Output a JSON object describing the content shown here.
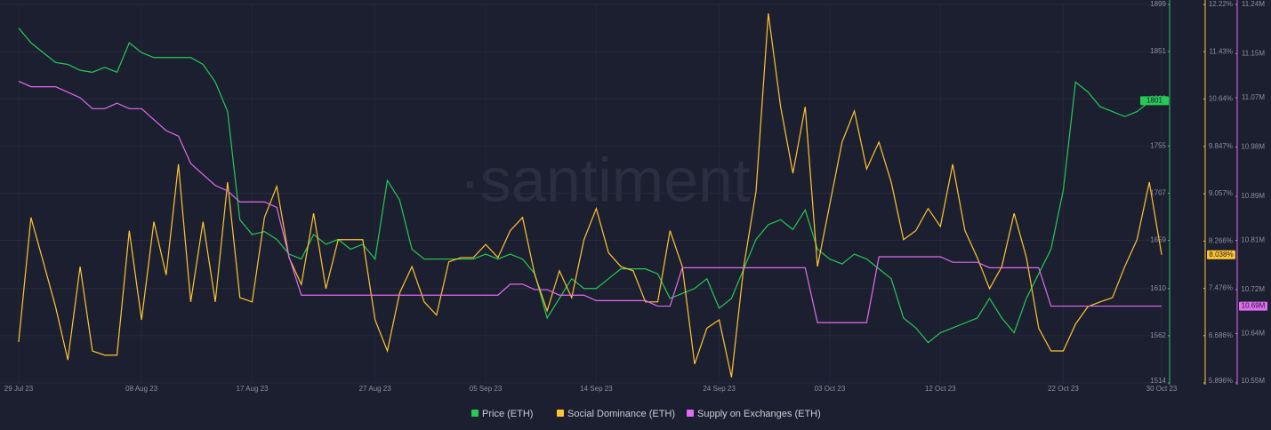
{
  "chart_data": {
    "type": "line",
    "watermark": "·santiment",
    "categories": [
      "29 Jul 23",
      null,
      null,
      null,
      null,
      null,
      null,
      null,
      null,
      null,
      "08 Aug 23",
      null,
      null,
      null,
      null,
      null,
      null,
      null,
      null,
      "17 Aug 23",
      null,
      null,
      null,
      null,
      null,
      null,
      null,
      null,
      null,
      "27 Aug 23",
      null,
      null,
      null,
      null,
      null,
      null,
      null,
      null,
      "05 Sep 23",
      null,
      null,
      null,
      null,
      null,
      null,
      null,
      null,
      "14 Sep 23",
      null,
      null,
      null,
      null,
      null,
      null,
      null,
      null,
      null,
      "24 Sep 23",
      null,
      null,
      null,
      null,
      null,
      null,
      null,
      null,
      "03 Oct 23",
      null,
      null,
      null,
      null,
      null,
      null,
      null,
      null,
      "12 Oct 23",
      null,
      null,
      null,
      null,
      null,
      null,
      null,
      null,
      null,
      "22 Oct 23",
      null,
      null,
      null,
      null,
      null,
      null,
      null,
      "30 Oct 23"
    ],
    "ylim": [
      1514,
      1899
    ],
    "yticks": [
      1514,
      1562,
      1610,
      1659,
      1707,
      1755,
      1803,
      1851,
      1899
    ],
    "y2lim": [
      5.896,
      12.22
    ],
    "y2ticks": [
      {
        "value": 5.896,
        "label": "5.896%"
      },
      {
        "value": 6.686,
        "label": "6.686%"
      },
      {
        "value": 7.476,
        "label": "7.476%"
      },
      {
        "value": 8.266,
        "label": "8.266%"
      },
      {
        "value": 9.057,
        "label": "9.057%"
      },
      {
        "value": 9.847,
        "label": "9.847%"
      },
      {
        "value": 10.64,
        "label": "10.64%"
      },
      {
        "value": 11.43,
        "label": "11.43%"
      },
      {
        "value": 12.22,
        "label": "12.22%"
      }
    ],
    "y3lim": [
      10.55,
      11.24
    ],
    "y3ticks": [
      {
        "value": 10.55,
        "label": "10.55M"
      },
      {
        "value": 10.64,
        "label": "10.64M"
      },
      {
        "value": 10.72,
        "label": "10.72M"
      },
      {
        "value": 10.81,
        "label": "10.81M"
      },
      {
        "value": 10.89,
        "label": "10.89M"
      },
      {
        "value": 10.98,
        "label": "10.98M"
      },
      {
        "value": 11.07,
        "label": "11.07M"
      },
      {
        "value": 11.15,
        "label": "11.15M"
      },
      {
        "value": 11.24,
        "label": "11.24M"
      }
    ],
    "grid": true,
    "legend": "bottom",
    "series": [
      {
        "name": "Price (ETH)",
        "color": "#26c953",
        "axis": "y",
        "end_label": "1801",
        "values": [
          1875,
          1860,
          1850,
          1840,
          1838,
          1832,
          1830,
          1835,
          1830,
          1860,
          1850,
          1845,
          1845,
          1845,
          1845,
          1838,
          1820,
          1790,
          1680,
          1665,
          1668,
          1660,
          1645,
          1640,
          1665,
          1655,
          1660,
          1650,
          1655,
          1640,
          1720,
          1700,
          1650,
          1640,
          1640,
          1640,
          1640,
          1640,
          1645,
          1640,
          1645,
          1640,
          1625,
          1580,
          1600,
          1620,
          1610,
          1610,
          1620,
          1630,
          1630,
          1630,
          1625,
          1600,
          1605,
          1610,
          1620,
          1590,
          1600,
          1630,
          1660,
          1675,
          1680,
          1670,
          1690,
          1650,
          1640,
          1635,
          1645,
          1640,
          1630,
          1620,
          1580,
          1570,
          1555,
          1565,
          1570,
          1575,
          1580,
          1600,
          1580,
          1565,
          1600,
          1625,
          1650,
          1710,
          1820,
          1810,
          1795,
          1790,
          1785,
          1790,
          1800,
          1801
        ]
      },
      {
        "name": "Social Dominance (ETH)",
        "color": "#ffc532",
        "axis": "y2",
        "end_label": "8.038%",
        "values": [
          6.58,
          8.66,
          7.92,
          7.17,
          6.28,
          7.84,
          6.43,
          6.36,
          6.36,
          8.44,
          6.95,
          8.59,
          7.7,
          9.55,
          7.25,
          8.59,
          7.25,
          9.25,
          7.32,
          7.25,
          8.66,
          9.18,
          7.99,
          7.54,
          8.73,
          7.47,
          8.29,
          8.29,
          8.29,
          6.95,
          6.43,
          7.4,
          7.84,
          7.25,
          7.03,
          7.92,
          7.99,
          7.99,
          8.21,
          7.99,
          8.44,
          8.66,
          7.7,
          7.1,
          7.77,
          7.32,
          8.29,
          8.81,
          8.07,
          7.84,
          7.77,
          7.25,
          7.25,
          8.44,
          7.84,
          6.21,
          6.81,
          6.95,
          5.99,
          7.84,
          9.1,
          12.07,
          10.51,
          9.4,
          10.51,
          7.84,
          8.88,
          9.92,
          10.44,
          9.47,
          9.92,
          9.25,
          8.29,
          8.44,
          8.81,
          8.51,
          9.55,
          8.44,
          7.99,
          7.47,
          7.84,
          8.73,
          7.99,
          6.81,
          6.43,
          6.43,
          6.88,
          7.17,
          7.25,
          7.32,
          7.84,
          8.29,
          9.25,
          8.038
        ]
      },
      {
        "name": "Supply on Exchanges (ETH)",
        "color": "#e06cf0",
        "axis": "y3",
        "end_label": "10.69M",
        "values": [
          11.1,
          11.09,
          11.09,
          11.09,
          11.08,
          11.07,
          11.05,
          11.05,
          11.06,
          11.05,
          11.05,
          11.03,
          11.01,
          11.0,
          10.95,
          10.93,
          10.91,
          10.9,
          10.88,
          10.88,
          10.88,
          10.87,
          10.78,
          10.71,
          10.71,
          10.71,
          10.71,
          10.71,
          10.71,
          10.71,
          10.71,
          10.71,
          10.71,
          10.71,
          10.71,
          10.71,
          10.71,
          10.71,
          10.71,
          10.71,
          10.73,
          10.73,
          10.72,
          10.72,
          10.71,
          10.71,
          10.71,
          10.7,
          10.7,
          10.7,
          10.7,
          10.7,
          10.69,
          10.69,
          10.76,
          10.76,
          10.76,
          10.76,
          10.76,
          10.76,
          10.76,
          10.76,
          10.76,
          10.76,
          10.76,
          10.66,
          10.66,
          10.66,
          10.66,
          10.66,
          10.78,
          10.78,
          10.78,
          10.78,
          10.78,
          10.78,
          10.77,
          10.77,
          10.77,
          10.76,
          10.76,
          10.76,
          10.76,
          10.76,
          10.69,
          10.69,
          10.69,
          10.69,
          10.69,
          10.69,
          10.69,
          10.69,
          10.69,
          10.69
        ]
      }
    ]
  }
}
